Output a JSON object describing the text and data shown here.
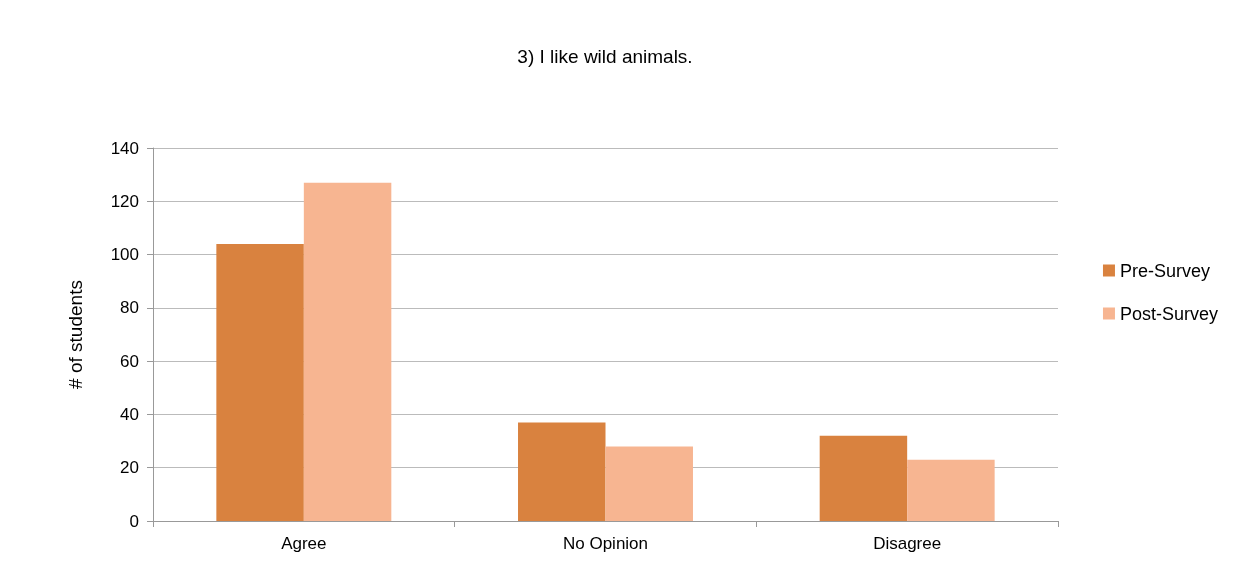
{
  "chart_data": {
    "type": "bar",
    "title": "3) I like wild animals.",
    "ylabel": "# of students",
    "categories": [
      "Agree",
      "No Opinion",
      "Disagree"
    ],
    "series": [
      {
        "name": "Pre-Survey",
        "color": "#d9823f",
        "values": [
          104,
          37,
          32
        ]
      },
      {
        "name": "Post-Survey",
        "color": "#f7b591",
        "values": [
          127,
          28,
          23
        ]
      }
    ],
    "ylim": [
      0,
      140
    ],
    "yticks": [
      0,
      20,
      40,
      60,
      80,
      100,
      120,
      140
    ],
    "grid": "y",
    "legend": "right"
  }
}
